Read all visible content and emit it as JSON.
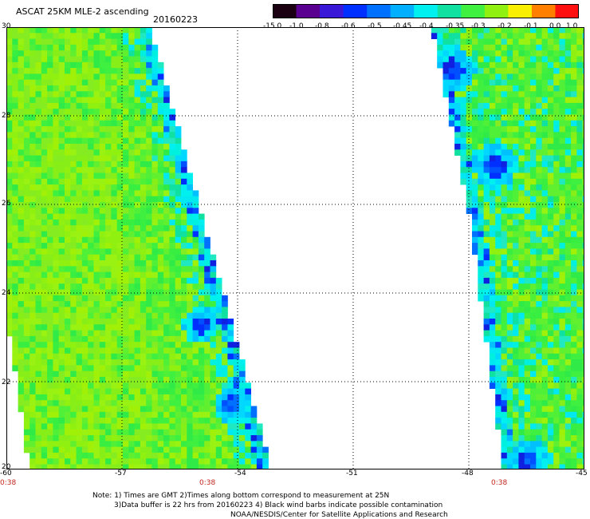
{
  "header": {
    "title": "ASCAT 25KM MLE-2 ascending",
    "date": "20160223"
  },
  "colorbar": {
    "labels": [
      "-15.0",
      "-1.0",
      "-0.8",
      "-0.6",
      "-0.5",
      "-0.45",
      "-0.4",
      "-0.35",
      "-0.3",
      "-0.2",
      "-0.1",
      "0.0",
      "1.0"
    ],
    "colors": [
      "#1a0010",
      "#5a0090",
      "#3a18d8",
      "#0030ff",
      "#0070ff",
      "#00b0ff",
      "#00f0f0",
      "#10e0a0",
      "#40f040",
      "#90f010",
      "#f8f000",
      "#ff8000",
      "#ff1010"
    ]
  },
  "map": {
    "lon_range": [
      -60,
      -45
    ],
    "lat_range": [
      20,
      30
    ],
    "lat_labels": [
      "30",
      "28",
      "26",
      "24",
      "22",
      "20"
    ],
    "lon_labels": [
      "-60",
      "-57",
      "-54",
      "-51",
      "-48",
      "-45"
    ],
    "time_labels": [
      "0:38",
      "0:38",
      "0:38"
    ]
  },
  "notes": {
    "line1": "Note: 1) Times are GMT 2)Times along bottom correspond to measurement at 25N",
    "line2": "3)Data buffer is 22 hrs from 20160223 4) Black wind barbs indicate possible contamination",
    "line3": "NOAA/NESDIS/Center for Satellite Applications and Research"
  }
}
